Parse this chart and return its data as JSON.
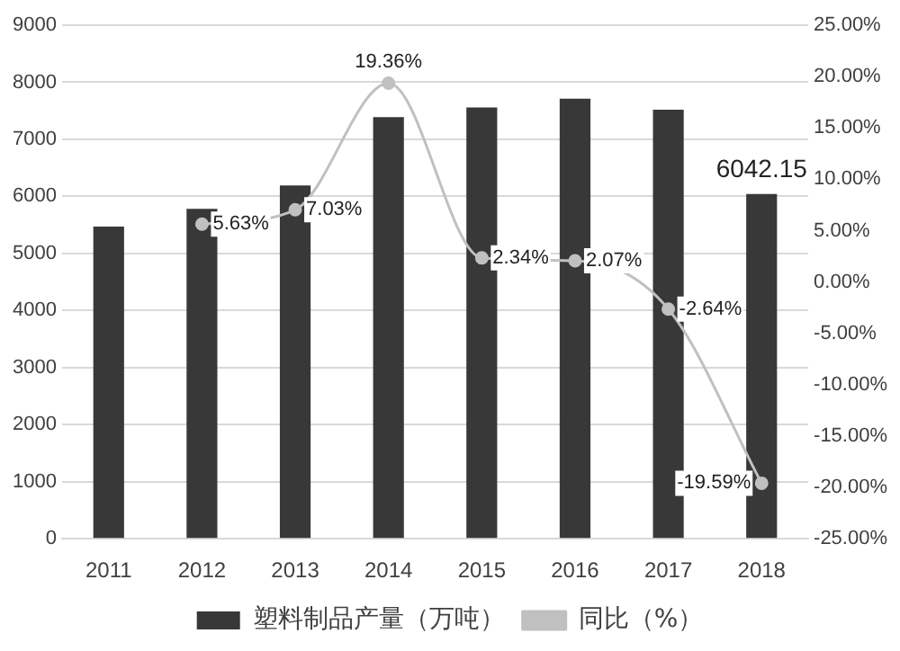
{
  "chart_data": {
    "type": "bar",
    "categories": [
      "2011",
      "2012",
      "2013",
      "2014",
      "2015",
      "2016",
      "2017",
      "2018"
    ],
    "series": [
      {
        "name": "塑料制品产量（万吨）",
        "color": "#383838",
        "values": [
          5470,
          5780,
          6190,
          7390,
          7560,
          7710,
          7520,
          6042.15
        ],
        "value_labels": [
          null,
          null,
          null,
          null,
          null,
          null,
          null,
          "6042.15"
        ]
      },
      {
        "name": "同比（%）",
        "type": "line",
        "axis": "y2",
        "color": "#c0c0c0",
        "marker": "circle",
        "values": [
          null,
          5.63,
          7.03,
          19.36,
          2.34,
          2.07,
          -2.64,
          -19.59
        ],
        "value_labels": [
          null,
          "5.63%",
          "7.03%",
          "19.36%",
          "2.34%",
          "2.07%",
          "-2.64%",
          "-19.59%"
        ]
      }
    ],
    "ylim": [
      0,
      9000
    ],
    "yticks": [
      0,
      1000,
      2000,
      3000,
      4000,
      5000,
      6000,
      7000,
      8000,
      9000
    ],
    "y2lim": [
      -25,
      25
    ],
    "y2ticks": [
      {
        "value": -25,
        "label": "-25.00%"
      },
      {
        "value": -20,
        "label": "-20.00%"
      },
      {
        "value": -15,
        "label": "-15.00%"
      },
      {
        "value": -10,
        "label": "-10.00%"
      },
      {
        "value": -5,
        "label": "-5.00%"
      },
      {
        "value": 0,
        "label": "0.00%"
      },
      {
        "value": 5,
        "label": "5.00%"
      },
      {
        "value": 10,
        "label": "10.00%"
      },
      {
        "value": 15,
        "label": "15.00%"
      },
      {
        "value": 20,
        "label": "20.00%"
      },
      {
        "value": 25,
        "label": "25.00%"
      }
    ],
    "grid": "y",
    "legend": "bottom"
  }
}
